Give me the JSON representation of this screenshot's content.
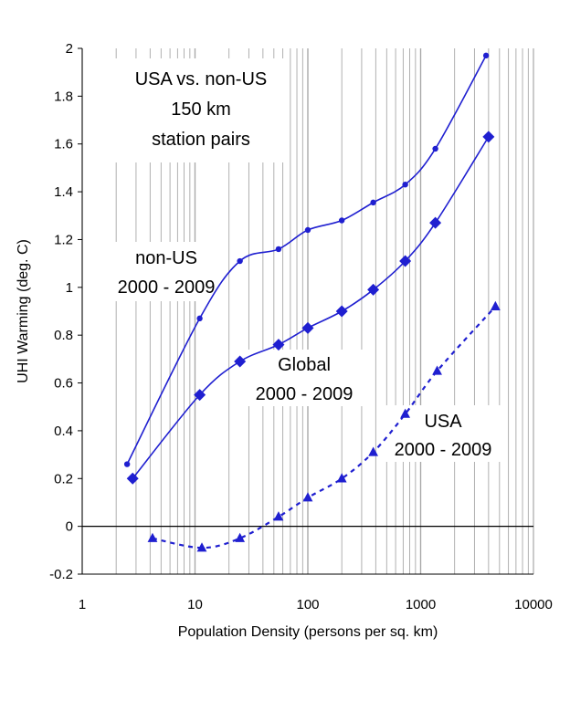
{
  "chart_data": {
    "type": "line",
    "xlabel": "Population Density (persons per sq. km)",
    "ylabel": "UHI Warming (deg. C)",
    "xscale": "log",
    "xlim": [
      1,
      10000
    ],
    "ylim": [
      -0.2,
      2
    ],
    "x_ticks": [
      "1",
      "10",
      "100",
      "1000",
      "10000"
    ],
    "y_ticks": [
      "-0.2",
      "0",
      "0.2",
      "0.4",
      "0.6",
      "0.8",
      "1",
      "1.2",
      "1.4",
      "1.6",
      "1.8",
      "2"
    ],
    "grid": "vertical minor log gridlines",
    "colors": {
      "series": "#1f1fd0"
    },
    "series": [
      {
        "name": "non-US 2000 - 2009",
        "marker": "circle",
        "line": "solid",
        "x": [
          2.5,
          11,
          25,
          55,
          100,
          200,
          380,
          730,
          1350,
          3800
        ],
        "y": [
          0.26,
          0.87,
          1.11,
          1.16,
          1.24,
          1.28,
          1.355,
          1.43,
          1.58,
          1.97
        ]
      },
      {
        "name": "Global 2000 - 2009",
        "marker": "diamond",
        "line": "solid",
        "x": [
          2.8,
          11,
          25,
          55,
          100,
          200,
          380,
          730,
          1350,
          4000
        ],
        "y": [
          0.2,
          0.55,
          0.69,
          0.76,
          0.83,
          0.9,
          0.99,
          1.11,
          1.27,
          1.63
        ]
      },
      {
        "name": "USA 2000 - 2009",
        "marker": "triangle",
        "line": "dashed",
        "x": [
          4.2,
          11.5,
          25,
          55,
          100,
          200,
          380,
          730,
          1400,
          4600
        ],
        "y": [
          -0.05,
          -0.09,
          -0.05,
          0.04,
          0.12,
          0.2,
          0.31,
          0.47,
          0.65,
          0.92
        ]
      }
    ],
    "annotations": {
      "title_lines": [
        "USA  vs. non-US",
        "150 km",
        "station pairs"
      ],
      "nonus_lines": [
        "non-US",
        "2000 - 2009"
      ],
      "global_lines": [
        "Global",
        "2000 - 2009"
      ],
      "usa_lines": [
        "USA",
        "2000 - 2009"
      ]
    }
  }
}
